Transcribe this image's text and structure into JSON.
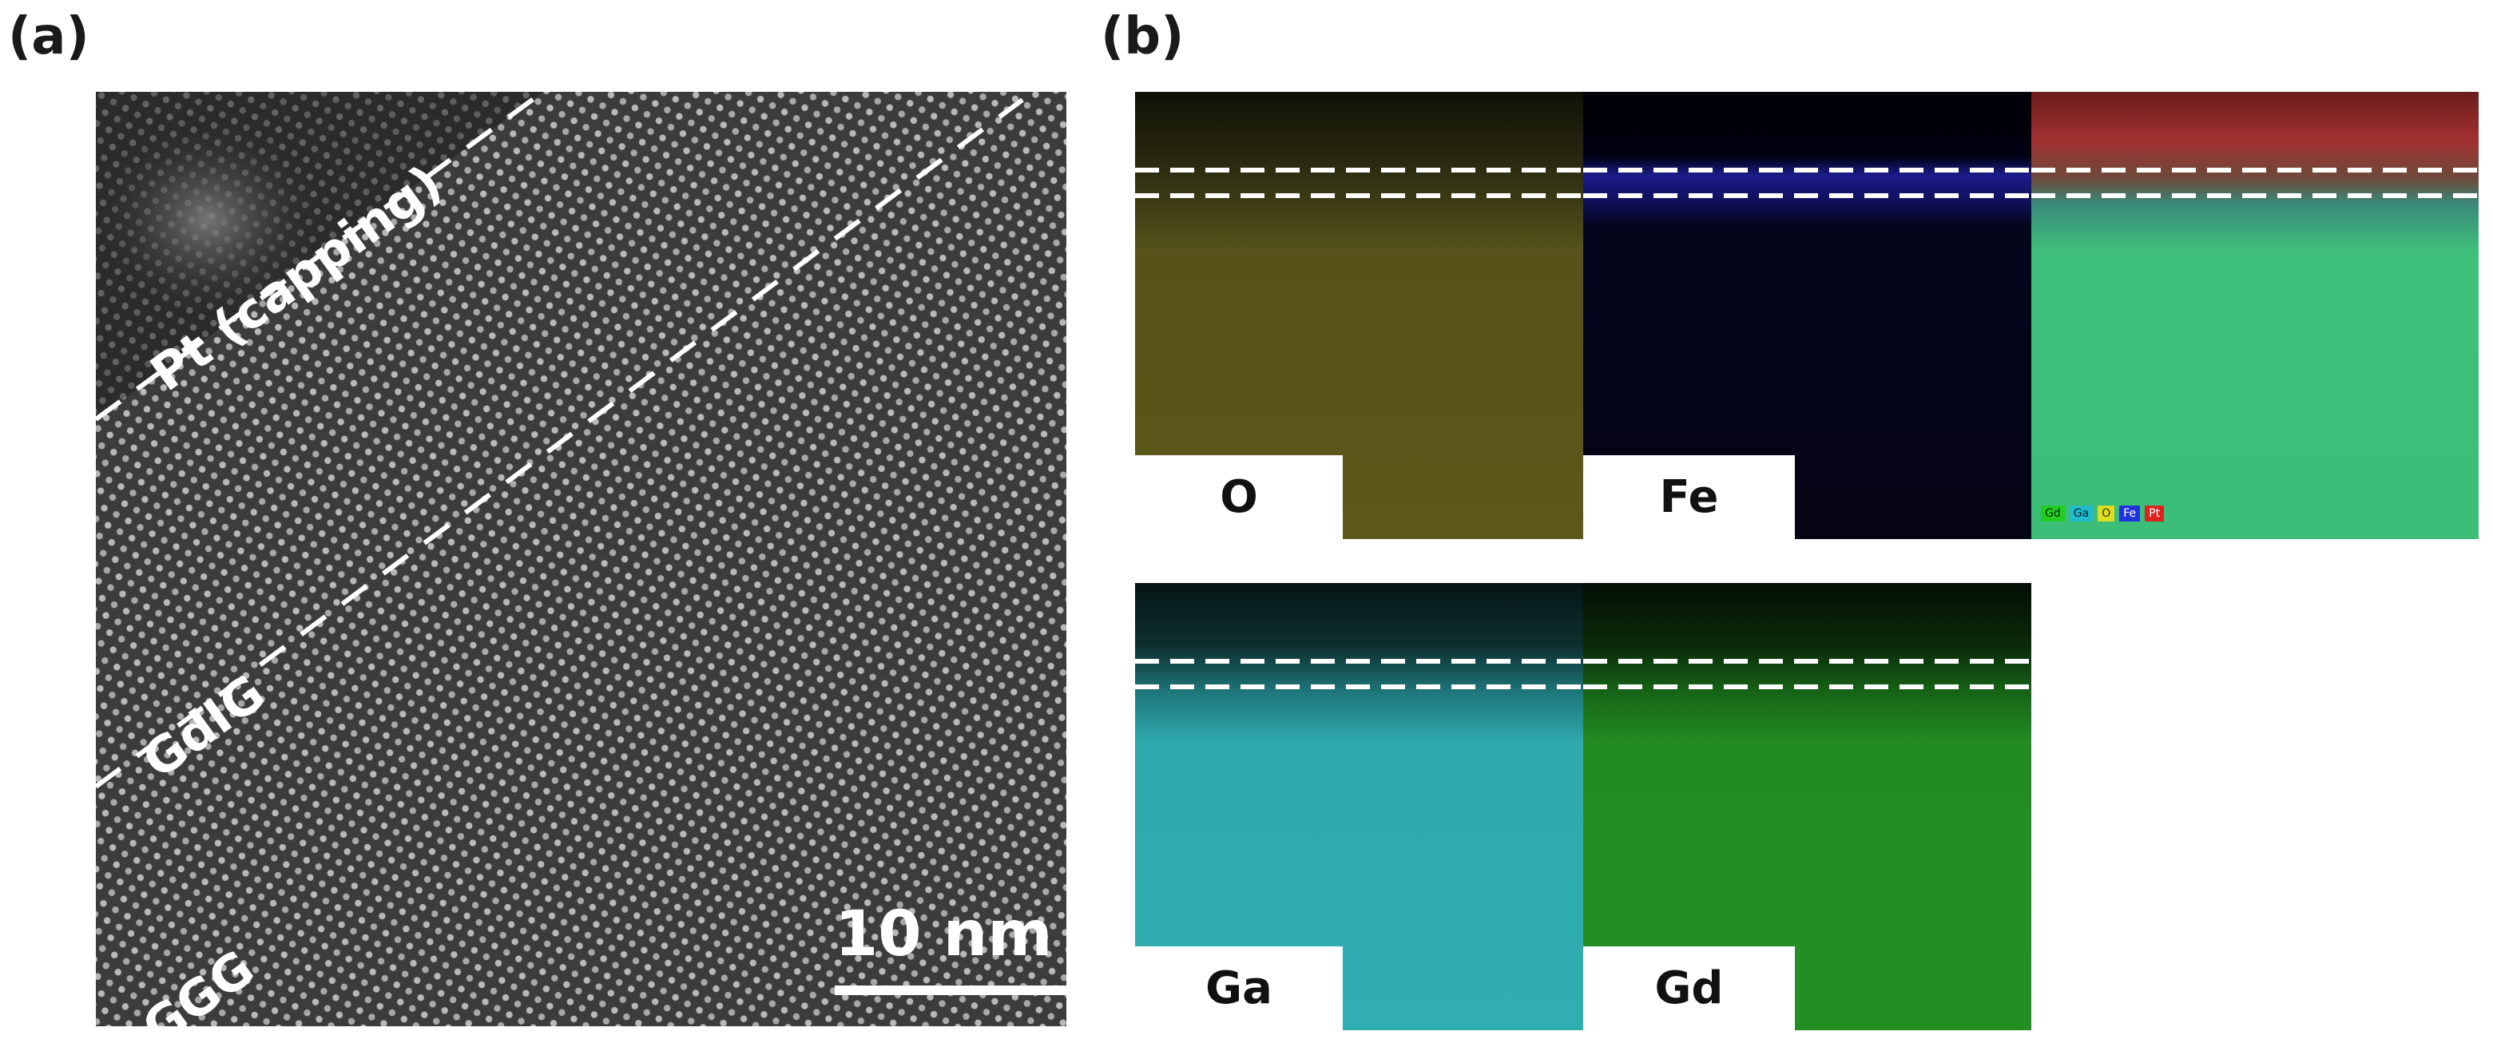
{
  "panel_a": {
    "label": "(a)",
    "layers": {
      "pt": "Pt (capping)",
      "gdig": "GdIG",
      "ggg": "GGG"
    },
    "scale_bar": "10 nm"
  },
  "panel_b": {
    "label": "(b)",
    "maps": [
      {
        "element": "O",
        "color": "#5a5514"
      },
      {
        "element": "Fe",
        "color": "#0c0c3c"
      },
      {
        "element": "Ga",
        "color": "#2fb0b4"
      },
      {
        "element": "Gd",
        "color": "#238f23"
      }
    ],
    "overlay_legend": [
      {
        "label": "Gd",
        "color": "#22cc22"
      },
      {
        "label": "Ga",
        "color": "#22bbcc"
      },
      {
        "label": "O",
        "color": "#dddd22"
      },
      {
        "label": "Fe",
        "color": "#2233dd"
      },
      {
        "label": "Pt",
        "color": "#dd2222"
      }
    ]
  }
}
